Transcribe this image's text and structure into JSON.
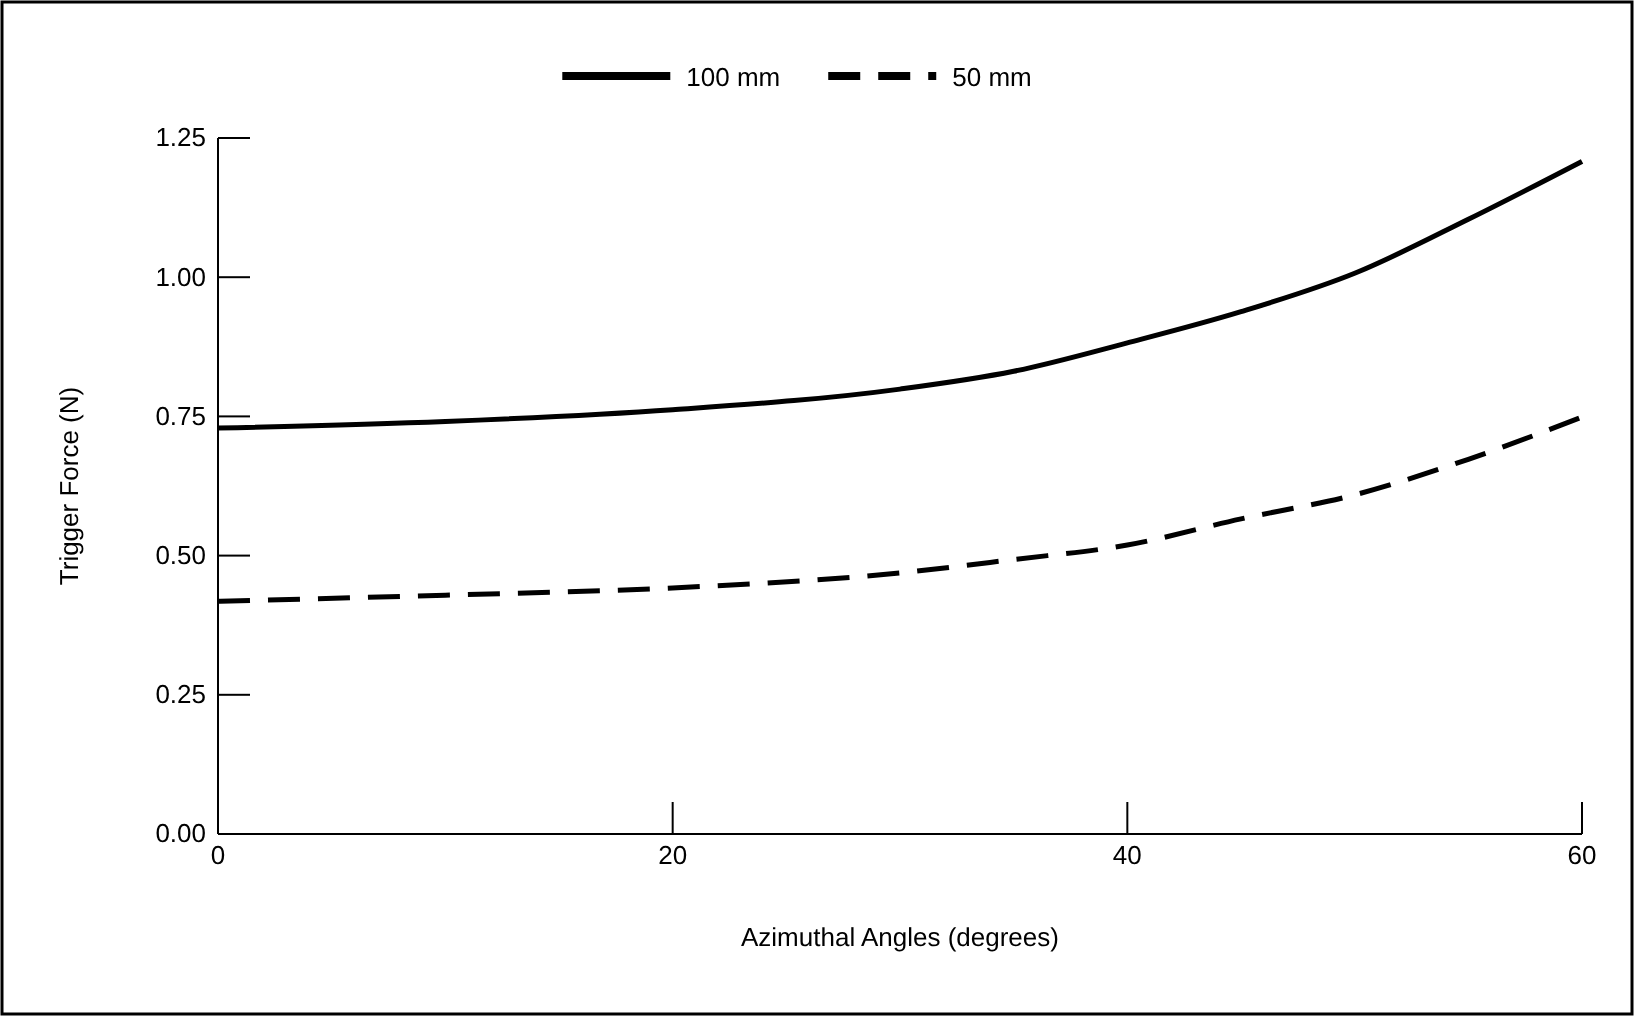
{
  "chart_data": {
    "type": "line",
    "xlabel": "Azimuthal Angles (degrees)",
    "ylabel": "Trigger Force (N)",
    "xlim": [
      0,
      60
    ],
    "xticks": [
      0,
      20,
      40,
      60
    ],
    "ylim": [
      0,
      1.25
    ],
    "yticks": [
      {
        "value": 0,
        "label": "0.00"
      },
      {
        "value": 0.25,
        "label": "0.25"
      },
      {
        "value": 0.5,
        "label": "0.50"
      },
      {
        "value": 0.75,
        "label": "0.75"
      },
      {
        "value": 1,
        "label": "1.00"
      },
      {
        "value": 1.25,
        "label": "1.25"
      }
    ],
    "x": [
      0,
      10,
      20,
      30,
      35,
      40,
      45,
      50,
      55,
      60
    ],
    "legend": "top",
    "grid": false,
    "marker": "none",
    "series": [
      {
        "name": "100 mm",
        "color": "#000000",
        "line_style": "solid",
        "values": [
          0.729,
          0.741,
          0.762,
          0.799,
          0.831,
          0.882,
          0.938,
          1.007,
          1.104,
          1.208
        ]
      },
      {
        "name": "50 mm",
        "color": "#000000",
        "line_style": "dashed",
        "values": [
          0.418,
          0.429,
          0.442,
          0.469,
          0.493,
          0.519,
          0.566,
          0.609,
          0.673,
          0.749
        ]
      }
    ]
  }
}
